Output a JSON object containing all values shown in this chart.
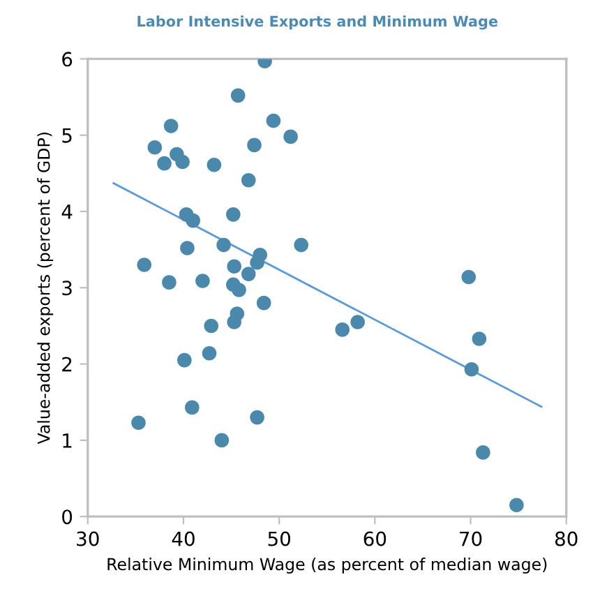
{
  "chart_data": {
    "type": "scatter",
    "title": "Labor Intensive Exports and Minimum Wage",
    "xlabel": "Relative Minimum Wage (as percent of median wage)",
    "ylabel": "Value-added exports (percent of GDP)",
    "xlim": [
      30,
      80
    ],
    "ylim": [
      0,
      6
    ],
    "xticks": [
      30,
      40,
      50,
      60,
      70,
      80
    ],
    "yticks": [
      0,
      1,
      2,
      3,
      4,
      5,
      6
    ],
    "grid": false,
    "series": [
      {
        "color": "#4a89ab",
        "marker": "circle",
        "x": [
          48.5,
          45.7,
          49.4,
          38.7,
          51.2,
          37.0,
          47.4,
          39.3,
          38.0,
          39.9,
          43.2,
          46.8,
          40.3,
          41.0,
          45.2,
          44.2,
          40.4,
          52.3,
          48.0,
          47.7,
          35.9,
          45.3,
          46.8,
          38.5,
          42.0,
          45.2,
          45.8,
          48.4,
          45.6,
          45.3,
          42.9,
          42.7,
          40.1,
          56.6,
          58.2,
          69.8,
          70.9,
          70.1,
          71.3,
          74.8,
          35.3,
          40.9,
          47.7,
          44.0
        ],
        "values": [
          5.97,
          5.52,
          5.19,
          5.12,
          4.98,
          4.84,
          4.87,
          4.75,
          4.63,
          4.65,
          4.61,
          4.41,
          3.96,
          3.88,
          3.96,
          3.56,
          3.52,
          3.56,
          3.43,
          3.33,
          3.3,
          3.28,
          3.18,
          3.07,
          3.09,
          3.04,
          2.97,
          2.8,
          2.66,
          2.55,
          2.5,
          2.14,
          2.05,
          2.45,
          2.55,
          3.14,
          2.33,
          1.93,
          0.84,
          0.15,
          1.23,
          1.43,
          1.3,
          1.0
        ]
      },
      {
        "type": "line",
        "color": "#5b9bd5",
        "x": [
          32.7,
          77.4
        ],
        "values": [
          4.37,
          1.44
        ]
      }
    ]
  }
}
